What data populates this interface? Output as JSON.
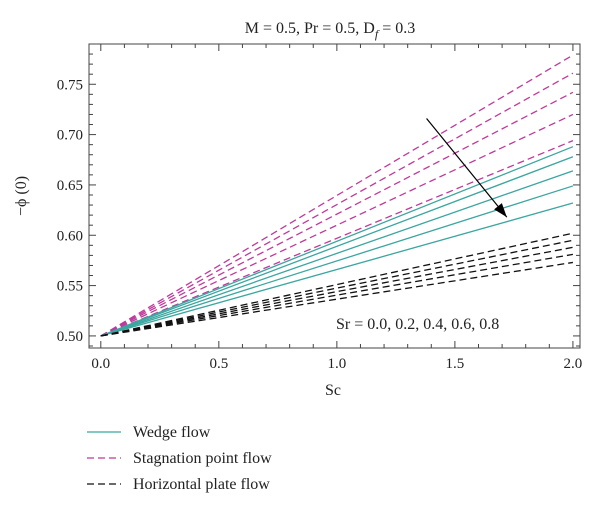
{
  "chart_data": {
    "type": "line",
    "title": "M = 0.5, Pr = 0.5, D",
    "title_subscript": "f",
    "title_suffix": " = 0.3",
    "xlabel": "Sc",
    "ylabel": "−ϕ (0)",
    "xlim": [
      -0.05,
      2.03
    ],
    "ylim": [
      0.488,
      0.79
    ],
    "xticks": [
      0.0,
      0.5,
      1.0,
      1.5,
      2.0
    ],
    "xtick_labels": [
      "0.0",
      "0.5",
      "1.0",
      "1.5",
      "2.0"
    ],
    "yticks": [
      0.5,
      0.55,
      0.6,
      0.65,
      0.7,
      0.75
    ],
    "ytick_labels": [
      "0.50",
      "0.55",
      "0.60",
      "0.65",
      "0.70",
      "0.75"
    ],
    "grid": false,
    "annotation": "Sr = 0.0, 0.2, 0.4, 0.6, 0.8",
    "arrow": {
      "from": [
        1.38,
        0.716
      ],
      "to": [
        1.72,
        0.618
      ],
      "color": "#000000"
    },
    "groups": [
      {
        "name": "Stagnation point flow",
        "style": "dashed",
        "color": "#c0399b",
        "sr": [
          0.0,
          0.2,
          0.4,
          0.6,
          0.8
        ],
        "x": [
          0.0,
          2.0
        ],
        "end_values": [
          0.779,
          0.761,
          0.742,
          0.72,
          0.694
        ]
      },
      {
        "name": "Wedge flow",
        "style": "solid",
        "color": "#3aa6a0",
        "sr": [
          0.0,
          0.2,
          0.4,
          0.6,
          0.8
        ],
        "x": [
          0.0,
          2.0
        ],
        "end_values": [
          0.688,
          0.678,
          0.664,
          0.649,
          0.632
        ]
      },
      {
        "name": "Horizontal plate flow",
        "style": "dashed",
        "color": "#111111",
        "sr": [
          0.0,
          0.2,
          0.4,
          0.6,
          0.8
        ],
        "x": [
          0.0,
          2.0
        ],
        "end_values": [
          0.602,
          0.595,
          0.588,
          0.581,
          0.573
        ]
      }
    ],
    "start_value": 0.5,
    "legend": {
      "placement": "below",
      "entries": [
        "Wedge flow",
        "Stagnation point flow",
        "Horizontal plate flow"
      ]
    }
  }
}
